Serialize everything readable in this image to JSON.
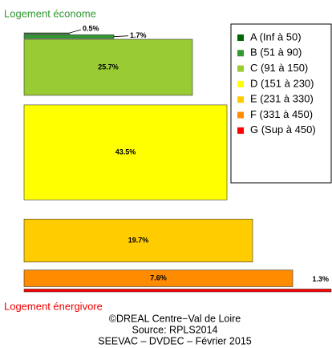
{
  "chart_data": {
    "type": "bar",
    "annotations": {
      "top": "Logement économe",
      "bottom": "Logement énergivore"
    },
    "footer": [
      "©DREAL Centre−Val de Loire",
      "Source: RPLS2014",
      "SEEVAC – DVDEC – Février 2015"
    ],
    "categories": [
      "A (Inf à 50)",
      "B (51 à 90)",
      "C (91 à 150)",
      "D (151 à 230)",
      "E (231 à 330)",
      "F (331 à 450)",
      "G (Sup à 450)"
    ],
    "values": [
      0.5,
      1.7,
      25.7,
      43.5,
      19.7,
      7.6,
      1.3
    ],
    "value_labels": [
      "0.5%",
      "1.7%",
      "25.7%",
      "43.5%",
      "19.7%",
      "7.6%",
      "1.3%"
    ],
    "colors": [
      "#006600",
      "#339933",
      "#99cc33",
      "#ffff00",
      "#ffcc00",
      "#ff8c00",
      "#ff0000"
    ]
  }
}
